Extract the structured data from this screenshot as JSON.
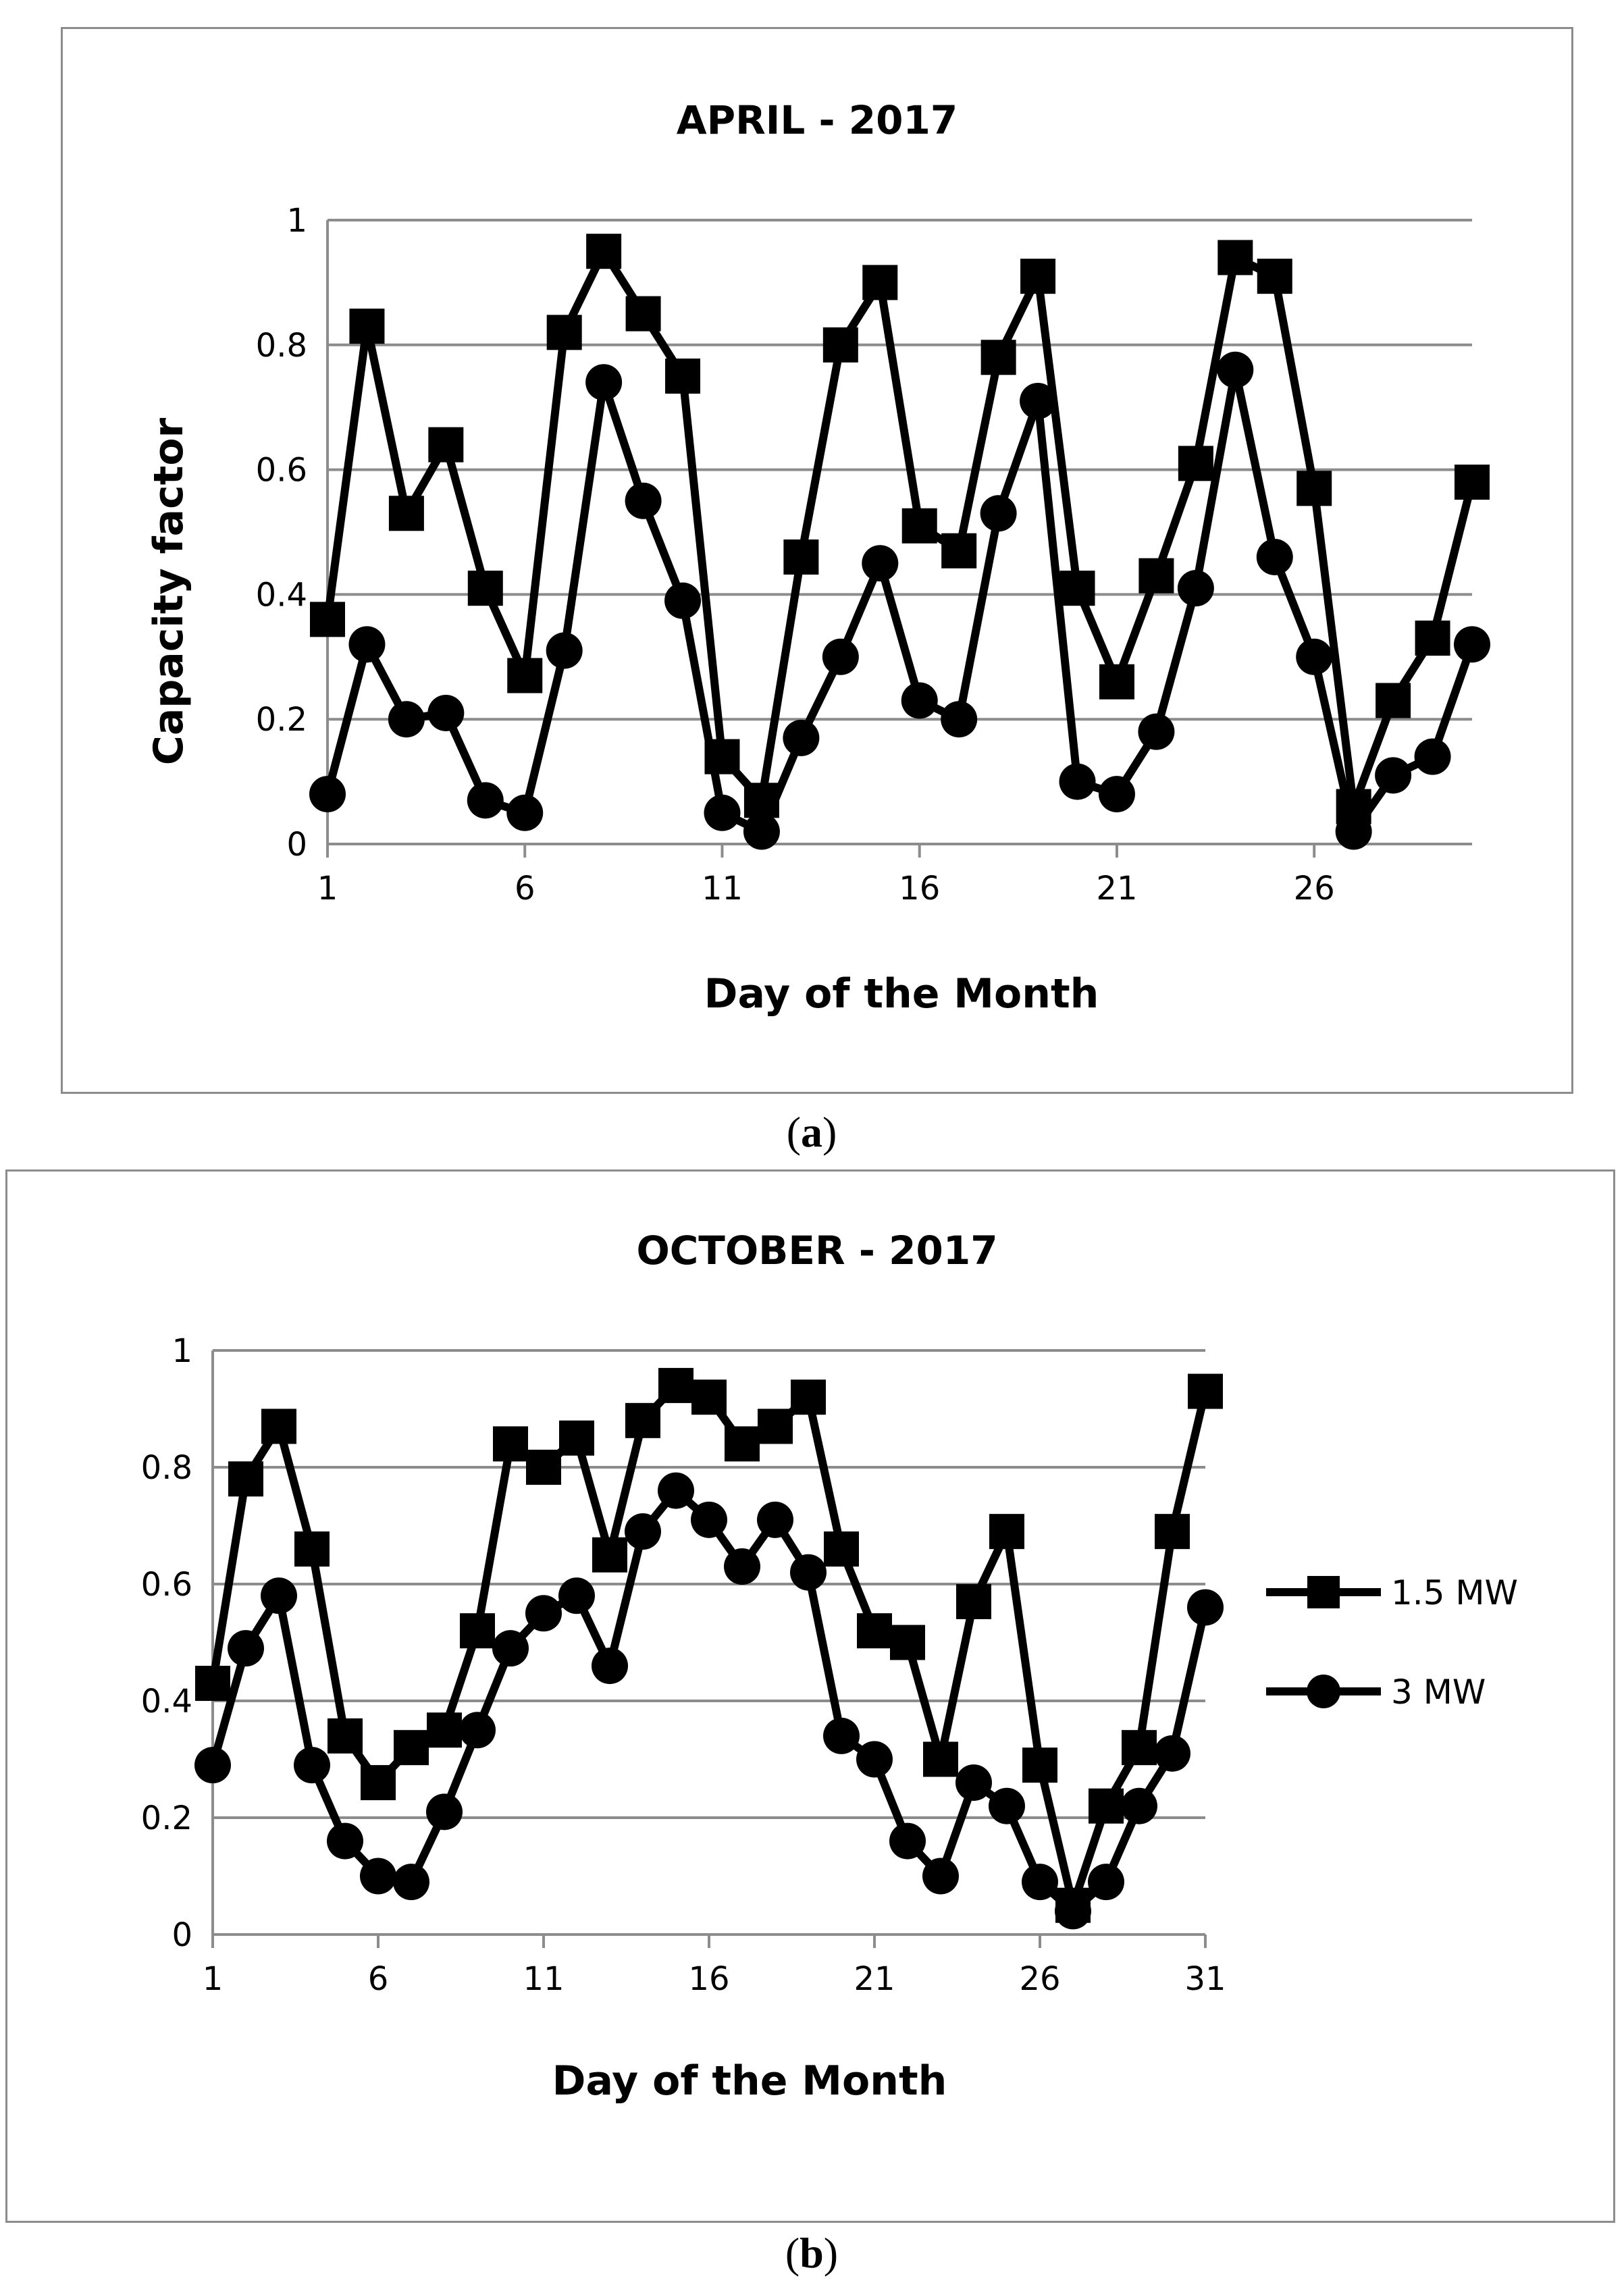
{
  "chart_data": [
    {
      "type": "line",
      "panel": "a",
      "title": "APRIL - 2017",
      "xlabel": "Day of the Month",
      "ylabel": "Capacity factor",
      "xlim": [
        1,
        30
      ],
      "ylim": [
        0,
        1
      ],
      "xticks": [
        "1",
        "6",
        "11",
        "16",
        "21",
        "26"
      ],
      "yticks": [
        "0",
        "0.2",
        "0.4",
        "0.6",
        "0.8",
        "1"
      ],
      "grid": true,
      "legend": null,
      "x": [
        1,
        2,
        3,
        4,
        5,
        6,
        7,
        8,
        9,
        10,
        11,
        12,
        13,
        14,
        15,
        16,
        17,
        18,
        19,
        20,
        21,
        22,
        23,
        24,
        25,
        26,
        27,
        28,
        29,
        30
      ],
      "series": [
        {
          "name": "1.5 MW",
          "marker": "square",
          "values": [
            0.36,
            0.83,
            0.53,
            0.64,
            0.41,
            0.27,
            0.82,
            0.95,
            0.85,
            0.75,
            0.14,
            0.07,
            0.46,
            0.8,
            0.9,
            0.51,
            0.47,
            0.78,
            0.91,
            0.41,
            0.26,
            0.43,
            0.61,
            0.94,
            0.91,
            0.57,
            0.06,
            0.23,
            0.33,
            0.58
          ]
        },
        {
          "name": "3 MW",
          "marker": "circle",
          "values": [
            0.08,
            0.32,
            0.2,
            0.21,
            0.07,
            0.05,
            0.31,
            0.74,
            0.55,
            0.39,
            0.05,
            0.02,
            0.17,
            0.3,
            0.45,
            0.23,
            0.2,
            0.53,
            0.71,
            0.1,
            0.08,
            0.18,
            0.41,
            0.76,
            0.46,
            0.3,
            0.02,
            0.11,
            0.14,
            0.32
          ]
        }
      ]
    },
    {
      "type": "line",
      "panel": "b",
      "title": "OCTOBER - 2017",
      "xlabel": "Day of the Month",
      "ylabel": "",
      "xlim": [
        1,
        31
      ],
      "ylim": [
        0,
        1
      ],
      "xticks": [
        "1",
        "6",
        "11",
        "16",
        "21",
        "26",
        "31"
      ],
      "yticks": [
        "0",
        "0.2",
        "0.4",
        "0.6",
        "0.8",
        "1"
      ],
      "grid": true,
      "legend": "right",
      "x": [
        1,
        2,
        3,
        4,
        5,
        6,
        7,
        8,
        9,
        10,
        11,
        12,
        13,
        14,
        15,
        16,
        17,
        18,
        19,
        20,
        21,
        22,
        23,
        24,
        25,
        26,
        27,
        28,
        29,
        30,
        31
      ],
      "series": [
        {
          "name": "1.5 MW",
          "marker": "square",
          "values": [
            0.43,
            0.78,
            0.87,
            0.66,
            0.34,
            0.26,
            0.32,
            0.35,
            0.52,
            0.84,
            0.8,
            0.85,
            0.65,
            0.88,
            0.94,
            0.92,
            0.84,
            0.87,
            0.92,
            0.66,
            0.52,
            0.5,
            0.3,
            0.57,
            0.69,
            0.29,
            0.05,
            0.22,
            0.32,
            0.69,
            0.93
          ]
        },
        {
          "name": "3 MW",
          "marker": "circle",
          "values": [
            0.29,
            0.49,
            0.58,
            0.29,
            0.16,
            0.1,
            0.09,
            0.21,
            0.35,
            0.49,
            0.55,
            0.58,
            0.46,
            0.69,
            0.76,
            0.71,
            0.63,
            0.71,
            0.62,
            0.34,
            0.3,
            0.16,
            0.1,
            0.26,
            0.22,
            0.09,
            0.04,
            0.09,
            0.22,
            0.31,
            0.56
          ]
        }
      ]
    }
  ],
  "captions": {
    "a": "a",
    "b": "b"
  },
  "colors": {
    "series": "#000000",
    "grid": "#8c8c8c",
    "border": "#8c8c8c"
  }
}
